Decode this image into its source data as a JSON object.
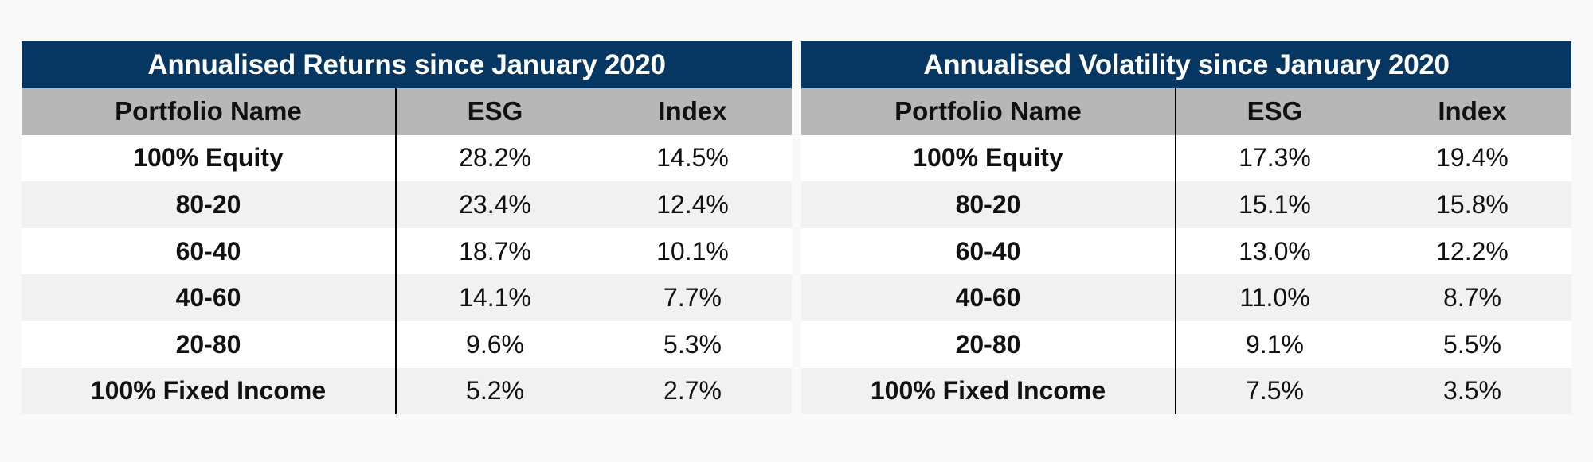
{
  "chart_data": [
    {
      "type": "table",
      "title": "Annualised Returns since January 2020",
      "columns": [
        "Portfolio Name",
        "ESG",
        "Index"
      ],
      "rows": [
        [
          "100% Equity",
          "28.2%",
          "14.5%"
        ],
        [
          "80-20",
          "23.4%",
          "12.4%"
        ],
        [
          "60-40",
          "18.7%",
          "10.1%"
        ],
        [
          "40-60",
          "14.1%",
          "7.7%"
        ],
        [
          "20-80",
          "9.6%",
          "5.3%"
        ],
        [
          "100% Fixed Income",
          "5.2%",
          "2.7%"
        ]
      ]
    },
    {
      "type": "table",
      "title": "Annualised Volatility since January 2020",
      "columns": [
        "Portfolio Name",
        "ESG",
        "Index"
      ],
      "rows": [
        [
          "100% Equity",
          "17.3%",
          "19.4%"
        ],
        [
          "80-20",
          "15.1%",
          "15.8%"
        ],
        [
          "60-40",
          "13.0%",
          "12.2%"
        ],
        [
          "40-60",
          "11.0%",
          "8.7%"
        ],
        [
          "20-80",
          "9.1%",
          "5.5%"
        ],
        [
          "100% Fixed Income",
          "7.5%",
          "3.5%"
        ]
      ]
    }
  ],
  "colors": {
    "title_bg": "#063763",
    "header_bg": "#b7b7b7",
    "row_alt_bg": "#f1f1f1"
  }
}
